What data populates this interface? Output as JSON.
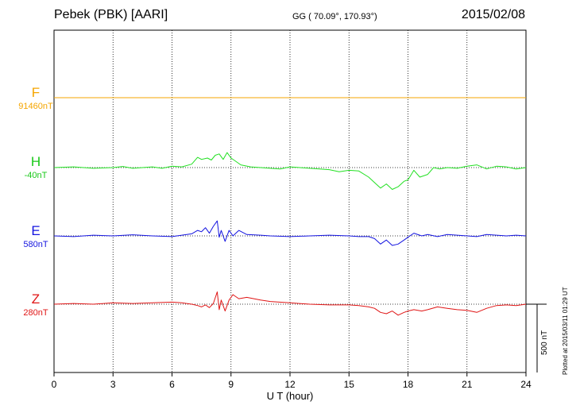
{
  "header": {
    "station": "Pebek (PBK)  [AARI]",
    "coords": "GG ( 70.09°, 170.93°)",
    "date": "2015/02/08"
  },
  "footer": {
    "plotted": "Plotted at 2015/03/11 01:29 UT"
  },
  "chart_data": {
    "type": "line",
    "title": "",
    "xlabel": "U T (hour)",
    "ylabel": "",
    "xlim": [
      0,
      24
    ],
    "xticks": [
      0,
      3,
      6,
      9,
      12,
      15,
      18,
      21,
      24
    ],
    "grid": true,
    "scale_bar": {
      "value": 500,
      "label": "500 nT"
    },
    "series": [
      {
        "name": "F",
        "baseline": "91460nT",
        "color": "#f5a500",
        "x": [
          0,
          24
        ],
        "values": [
          0,
          0
        ]
      },
      {
        "name": "H",
        "baseline": "-40nT",
        "color": "#22e022",
        "x": [
          0,
          1,
          2,
          3,
          3.5,
          4,
          5,
          5.5,
          6,
          6.5,
          7,
          7.3,
          7.5,
          7.8,
          8,
          8.2,
          8.4,
          8.6,
          8.8,
          9,
          9.2,
          9.5,
          10,
          10.5,
          11,
          11.5,
          12,
          12.5,
          13,
          14,
          14.5,
          15,
          15.5,
          16,
          16.3,
          16.6,
          16.9,
          17.2,
          17.5,
          17.8,
          18,
          18.3,
          18.6,
          19,
          19.3,
          19.6,
          20,
          20.5,
          21,
          21.5,
          22,
          22.5,
          23,
          23.5,
          24
        ],
        "values": [
          0,
          5,
          -5,
          0,
          8,
          -5,
          5,
          -5,
          10,
          5,
          25,
          75,
          60,
          70,
          55,
          90,
          100,
          60,
          110,
          70,
          50,
          20,
          5,
          0,
          -5,
          -10,
          5,
          0,
          -5,
          -15,
          -30,
          -20,
          -25,
          -70,
          -110,
          -150,
          -120,
          -160,
          -140,
          -100,
          -90,
          -20,
          -70,
          -50,
          0,
          -10,
          0,
          -5,
          10,
          20,
          -10,
          10,
          5,
          -10,
          0
        ]
      },
      {
        "name": "E",
        "baseline": "580nT",
        "color": "#1515e0",
        "x": [
          0,
          1,
          2,
          3,
          4,
          5,
          6,
          6.5,
          7,
          7.3,
          7.5,
          7.7,
          7.9,
          8.1,
          8.3,
          8.4,
          8.5,
          8.7,
          8.9,
          9.1,
          9.4,
          9.8,
          10.5,
          11,
          12,
          13,
          14,
          15,
          15.5,
          16,
          16.3,
          16.6,
          16.9,
          17.2,
          17.5,
          17.8,
          18,
          18.3,
          18.7,
          19,
          19.5,
          20,
          21,
          21.5,
          22,
          22.5,
          23,
          23.5,
          24
        ],
        "values": [
          0,
          -5,
          5,
          0,
          8,
          0,
          -5,
          5,
          15,
          40,
          30,
          60,
          20,
          70,
          110,
          -10,
          40,
          -40,
          40,
          0,
          40,
          10,
          5,
          0,
          -5,
          0,
          5,
          0,
          -5,
          -5,
          -20,
          -60,
          -30,
          -70,
          -60,
          -30,
          -10,
          20,
          0,
          10,
          -5,
          10,
          0,
          -5,
          10,
          5,
          0,
          5,
          0
        ]
      },
      {
        "name": "Z",
        "baseline": "280nT",
        "color": "#e01515",
        "x": [
          0,
          1,
          2,
          3,
          4,
          5,
          6,
          6.5,
          7,
          7.3,
          7.5,
          7.7,
          7.9,
          8.1,
          8.3,
          8.4,
          8.5,
          8.7,
          8.9,
          9.1,
          9.4,
          9.8,
          10.5,
          11,
          12,
          13,
          14,
          15,
          15.5,
          16,
          16.3,
          16.6,
          16.9,
          17.2,
          17.5,
          17.8,
          18,
          18.3,
          18.7,
          19,
          19.5,
          20,
          20.5,
          21,
          21.5,
          22,
          22.5,
          23,
          23.5,
          24
        ],
        "values": [
          0,
          5,
          0,
          10,
          5,
          10,
          15,
          10,
          0,
          -10,
          -20,
          -5,
          -25,
          5,
          90,
          -40,
          30,
          -50,
          30,
          70,
          40,
          50,
          30,
          20,
          10,
          0,
          -5,
          -5,
          -10,
          -20,
          -30,
          -60,
          -70,
          -50,
          -80,
          -60,
          -50,
          -40,
          -50,
          -40,
          -20,
          -30,
          -40,
          -45,
          -60,
          -30,
          -10,
          -5,
          -10,
          0
        ]
      }
    ]
  }
}
